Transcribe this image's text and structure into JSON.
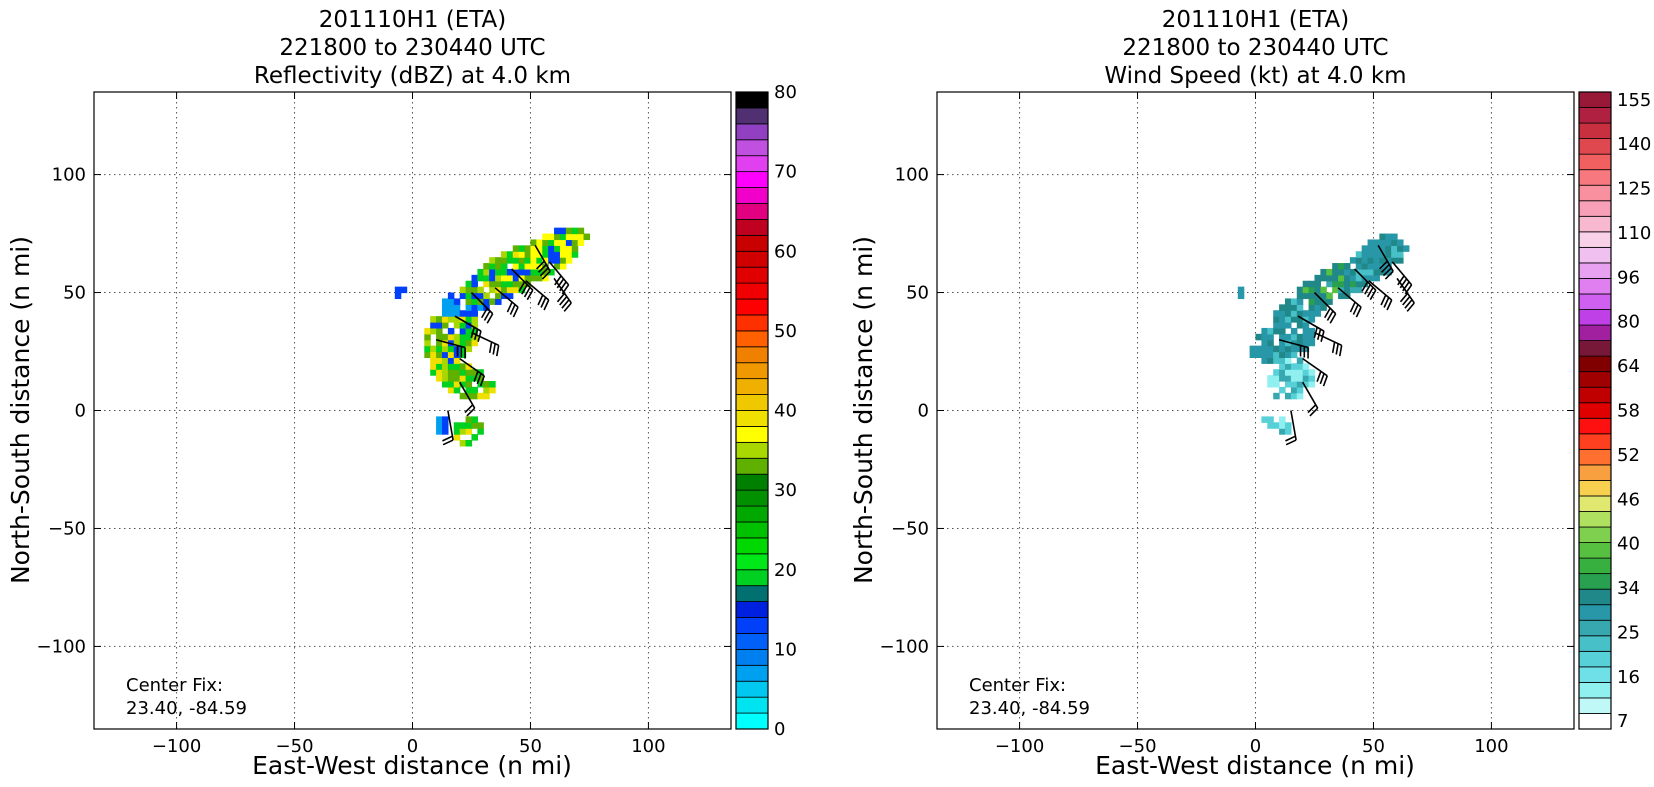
{
  "panels": [
    {
      "title_line1": "201110H1 (ETA)",
      "title_line2": "221800 to 230440 UTC",
      "title_line3": "Reflectivity (dBZ) at 4.0 km",
      "center_fix_label": "Center Fix:",
      "center_fix_value": "23.40, -84.59"
    },
    {
      "title_line1": "201110H1 (ETA)",
      "title_line2": "221800 to 230440 UTC",
      "title_line3": "Wind Speed (kt) at 4.0 km",
      "center_fix_label": "Center Fix:",
      "center_fix_value": "23.40, -84.59"
    }
  ],
  "chart_data": [
    {
      "type": "heatmap",
      "title": "201110H1 (ETA) 221800 to 230440 UTC Reflectivity (dBZ) at 4.0 km",
      "xlabel": "East-West distance (n mi)",
      "ylabel": "North-South distance (n mi)",
      "xlim": [
        -135,
        135
      ],
      "ylim": [
        -135,
        135
      ],
      "xticks": [
        -100,
        -50,
        0,
        50,
        100
      ],
      "yticks": [
        -100,
        -50,
        0,
        50,
        100
      ],
      "grid": true,
      "colorbar": {
        "min": 0,
        "max": 80,
        "step": 2.5,
        "ticks": [
          0,
          10,
          20,
          30,
          40,
          50,
          60,
          70,
          80
        ],
        "colors": [
          "#00ffff",
          "#00e4f0",
          "#00c8f0",
          "#00a0f0",
          "#0080f0",
          "#0060f8",
          "#0040f8",
          "#0020e0",
          "#007070",
          "#00d020",
          "#00e818",
          "#00d800",
          "#00c000",
          "#00a800",
          "#009000",
          "#008000",
          "#60b000",
          "#a8d800",
          "#ffff00",
          "#f0e000",
          "#f0c800",
          "#f0b000",
          "#f09800",
          "#f08000",
          "#ff6000",
          "#ff3000",
          "#ff0000",
          "#f00000",
          "#e00000",
          "#d00000",
          "#c80000",
          "#c00020",
          "#e00080",
          "#f000c8",
          "#ff00ff",
          "#e040f0",
          "#c050e0",
          "#9040c0",
          "#503070",
          "#000000"
        ]
      },
      "annotation": "Center Fix: 23.40, -84.59"
    },
    {
      "type": "heatmap",
      "title": "201110H1 (ETA) 221800 to 230440 UTC Wind Speed (kt) at 4.0 km",
      "xlabel": "East-West distance (n mi)",
      "ylabel": "North-South distance (n mi)",
      "xlim": [
        -135,
        135
      ],
      "ylim": [
        -135,
        135
      ],
      "xticks": [
        -100,
        -50,
        0,
        50,
        100
      ],
      "yticks": [
        -100,
        -50,
        0,
        50,
        100
      ],
      "grid": true,
      "colorbar": {
        "ticks": [
          7,
          16,
          25,
          34,
          40,
          46,
          52,
          58,
          64,
          80,
          96,
          110,
          125,
          140,
          155
        ],
        "colors": [
          "#ffffff",
          "#c0f8f8",
          "#90f0f0",
          "#70e0e8",
          "#58d0d8",
          "#48c0c8",
          "#38a8b0",
          "#2898a8",
          "#208888",
          "#28a050",
          "#38b040",
          "#58c040",
          "#80d050",
          "#b0e060",
          "#e0e870",
          "#f8d050",
          "#f8a040",
          "#ff7030",
          "#ff4020",
          "#ff1010",
          "#e00000",
          "#c00000",
          "#a00000",
          "#800000",
          "#781838",
          "#a020a0",
          "#c040e8",
          "#d060f0",
          "#e080f0",
          "#e8a0f0",
          "#f0c0f0",
          "#f8d0e8",
          "#f8b8d0",
          "#f8a0b8",
          "#f890a0",
          "#f87880",
          "#f06060",
          "#e04850",
          "#c83040",
          "#b02040",
          "#981838"
        ]
      },
      "annotation": "Center Fix: 23.40, -84.59"
    }
  ]
}
